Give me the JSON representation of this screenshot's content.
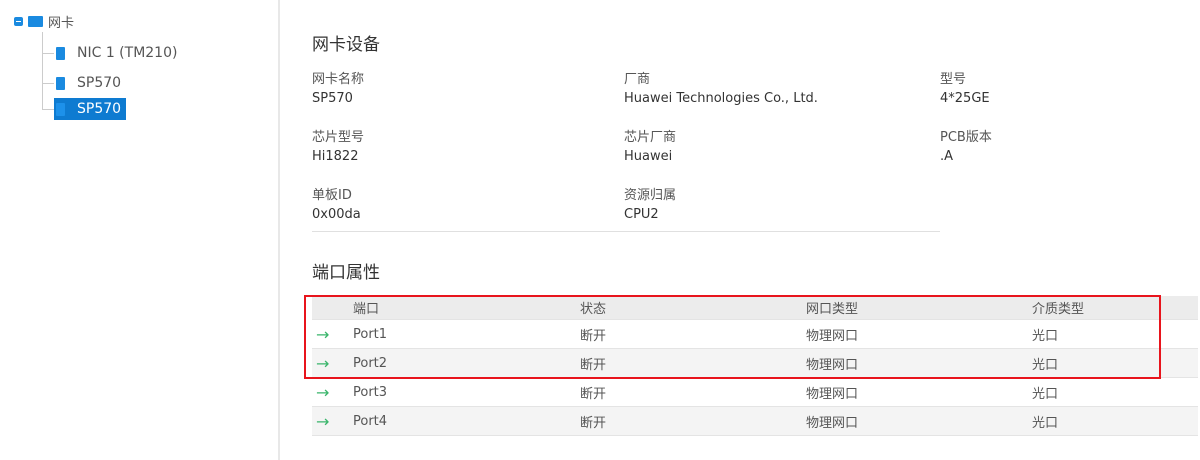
{
  "tree": {
    "root": "网卡",
    "children": [
      {
        "label": "NIC 1 (TM210)"
      },
      {
        "label": "SP570"
      },
      {
        "label": "SP570",
        "selected": true
      }
    ]
  },
  "device": {
    "title": "网卡设备",
    "fields": [
      {
        "label": "网卡名称",
        "value": "SP570"
      },
      {
        "label": "厂商",
        "value": "Huawei Technologies Co., Ltd."
      },
      {
        "label": "型号",
        "value": "4*25GE"
      },
      {
        "label": "芯片型号",
        "value": "Hi1822"
      },
      {
        "label": "芯片厂商",
        "value": "Huawei"
      },
      {
        "label": "PCB版本",
        "value": ".A"
      },
      {
        "label": "单板ID",
        "value": "0x00da"
      },
      {
        "label": "资源归属",
        "value": "CPU2"
      }
    ]
  },
  "ports": {
    "title": "端口属性",
    "headers": [
      "端口",
      "状态",
      "网口类型",
      "介质类型"
    ],
    "rows": [
      [
        "Port1",
        "断开",
        "物理网口",
        "光口"
      ],
      [
        "Port2",
        "断开",
        "物理网口",
        "光口"
      ],
      [
        "Port3",
        "断开",
        "物理网口",
        "光口"
      ],
      [
        "Port4",
        "断开",
        "物理网口",
        "光口"
      ]
    ],
    "row_icon": "arrow-right-icon",
    "highlight_color": "#e8141c",
    "highlighted_rows": [
      "Port1",
      "Port2"
    ]
  },
  "colors": {
    "accent": "#0e7bd1",
    "arrow": "#3ab56b"
  }
}
